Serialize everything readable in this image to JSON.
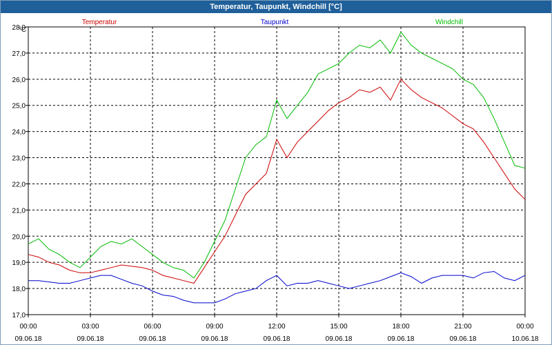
{
  "window": {
    "title": "Temperatur, Taupunkt, Windchill [°C]"
  },
  "colors": {
    "temperatur": "#cc0000",
    "taupunkt": "#0000cc",
    "windchill": "#00bb00",
    "titlebar": "#1f5f9a",
    "grid": "#000000"
  },
  "chart_data": {
    "type": "line",
    "title": "Temperatur, Taupunkt, Windchill [°C]",
    "ylabel": "°C",
    "ylim": [
      17.0,
      28.0
    ],
    "yticks": [
      "17,0",
      "18,0",
      "19,0",
      "20,0",
      "21,0",
      "22,0",
      "23,0",
      "24,0",
      "25,0",
      "26,0",
      "27,0",
      "28,0"
    ],
    "xlim": [
      0,
      24
    ],
    "xticks": [
      {
        "time": "00:00",
        "date": "09.06.18"
      },
      {
        "time": "03:00",
        "date": "09.06.18"
      },
      {
        "time": "06:00",
        "date": "09.06.18"
      },
      {
        "time": "09:00",
        "date": "09.06.18"
      },
      {
        "time": "12:00",
        "date": "09.06.18"
      },
      {
        "time": "15:00",
        "date": "09.06.18"
      },
      {
        "time": "18:00",
        "date": "09.06.18"
      },
      {
        "time": "21:00",
        "date": "09.06.18"
      },
      {
        "time": "00:00",
        "date": "10.06.18"
      }
    ],
    "grid": true,
    "legend": "top",
    "x": [
      0,
      0.5,
      1,
      1.5,
      2,
      2.5,
      3,
      3.5,
      4,
      4.5,
      5,
      5.5,
      6,
      6.5,
      7,
      7.5,
      8,
      8.5,
      9,
      9.5,
      10,
      10.5,
      11,
      11.5,
      12,
      12.5,
      13,
      13.5,
      14,
      14.5,
      15,
      15.5,
      16,
      16.5,
      17,
      17.5,
      18,
      18.5,
      19,
      19.5,
      20,
      20.5,
      21,
      21.5,
      22,
      22.5,
      23,
      23.5,
      24
    ],
    "series": [
      {
        "name": "Temperatur",
        "color": "#cc0000",
        "values": [
          19.3,
          19.2,
          19.0,
          18.9,
          18.7,
          18.6,
          18.6,
          18.7,
          18.8,
          18.9,
          18.85,
          18.8,
          18.7,
          18.5,
          18.4,
          18.3,
          18.2,
          18.8,
          19.4,
          20.0,
          20.8,
          21.6,
          22.0,
          22.4,
          23.7,
          23.0,
          23.6,
          24.0,
          24.4,
          24.8,
          25.1,
          25.3,
          25.6,
          25.5,
          25.7,
          25.2,
          26.0,
          25.6,
          25.3,
          25.1,
          24.9,
          24.6,
          24.3,
          24.1,
          23.6,
          23.0,
          22.4,
          21.8,
          21.4
        ]
      },
      {
        "name": "Taupunkt",
        "color": "#0000cc",
        "values": [
          18.3,
          18.3,
          18.25,
          18.2,
          18.2,
          18.3,
          18.4,
          18.5,
          18.5,
          18.35,
          18.2,
          18.1,
          17.9,
          17.75,
          17.7,
          17.55,
          17.45,
          17.45,
          17.45,
          17.6,
          17.8,
          17.9,
          18.0,
          18.3,
          18.5,
          18.1,
          18.2,
          18.2,
          18.3,
          18.2,
          18.1,
          18.0,
          18.1,
          18.2,
          18.3,
          18.45,
          18.6,
          18.45,
          18.2,
          18.4,
          18.5,
          18.5,
          18.5,
          18.4,
          18.6,
          18.65,
          18.4,
          18.3,
          18.5
        ]
      },
      {
        "name": "Windchill",
        "color": "#00bb00",
        "values": [
          19.7,
          19.9,
          19.5,
          19.3,
          19.0,
          18.8,
          19.2,
          19.6,
          19.8,
          19.7,
          19.9,
          19.6,
          19.3,
          19.0,
          18.8,
          18.7,
          18.4,
          19.0,
          19.8,
          20.6,
          21.8,
          23.0,
          23.5,
          23.8,
          25.2,
          24.5,
          25.0,
          25.5,
          26.2,
          26.4,
          26.6,
          27.0,
          27.3,
          27.2,
          27.5,
          27.0,
          27.8,
          27.3,
          27.0,
          26.8,
          26.6,
          26.4,
          26.0,
          25.8,
          25.3,
          24.5,
          23.6,
          22.7,
          22.6
        ]
      }
    ]
  }
}
